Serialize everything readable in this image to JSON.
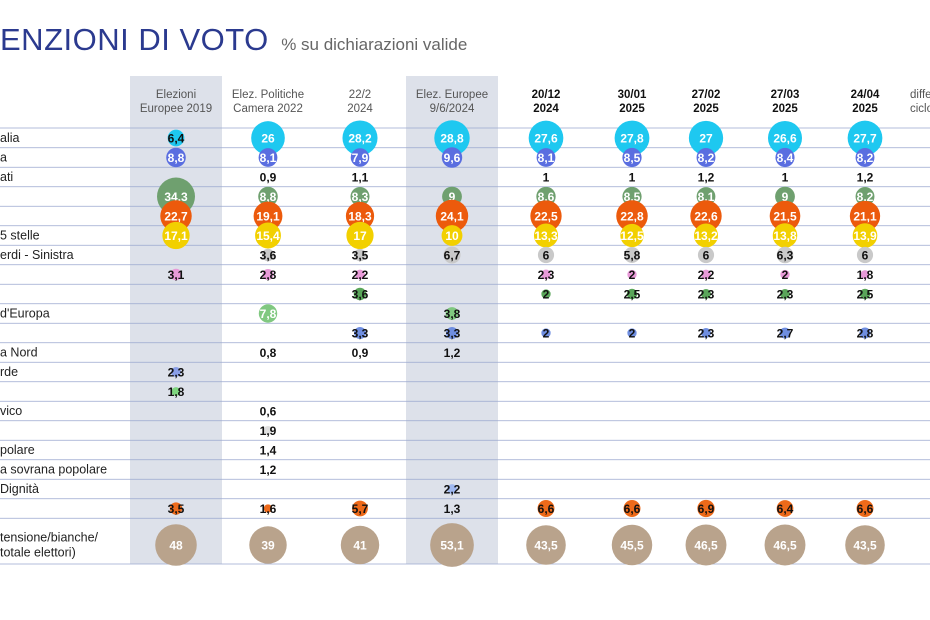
{
  "title": "ENZIONI DI VOTO",
  "subtitle": "% su dichiarazioni valide",
  "colors": {
    "title": "#2b3a8f",
    "highlight": "#dde1ea",
    "row_line": "#9aa8cf",
    "parties": [
      "#1ec8f0",
      "#5a6ee0",
      "#8fe28f",
      "#6fa06f",
      "#ec5a0c",
      "#f2d000",
      "#c9c9c9",
      "#e89ad8",
      "#5aa65a",
      "#80c880",
      "#6f8ee0",
      "#f2e23a",
      "#8a9fe8",
      "#7fd67f",
      "#f07a9a",
      "#e0e0e0",
      "#6fb0ff",
      "#f2d066",
      "#9fb8f0",
      "#ee6a1a",
      "#b9a38c",
      "#8f8f8f"
    ]
  },
  "chart_data": {
    "type": "table",
    "columns": [
      {
        "label": [
          "Elezioni",
          "Europee 2019"
        ],
        "bold": false,
        "highlight": true
      },
      {
        "label": [
          "Elez. Politiche",
          "Camera 2022"
        ],
        "bold": false,
        "highlight": false
      },
      {
        "label": [
          "22/2",
          "2024"
        ],
        "bold": false,
        "highlight": false
      },
      {
        "label": [
          "Elez. Europee",
          "9/6/2024"
        ],
        "bold": false,
        "highlight": true
      },
      {
        "label": [
          "20/12",
          "2024"
        ],
        "bold": true,
        "highlight": false
      },
      {
        "label": [
          "30/01",
          "2025"
        ],
        "bold": true,
        "highlight": false
      },
      {
        "label": [
          "27/02",
          "2025"
        ],
        "bold": true,
        "highlight": false
      },
      {
        "label": [
          "27/03",
          "2025"
        ],
        "bold": true,
        "highlight": false
      },
      {
        "label": [
          "24/04",
          "2025"
        ],
        "bold": true,
        "highlight": false
      },
      {
        "label": [
          "diffe",
          "ciclo"
        ],
        "bold": false,
        "highlight": false
      }
    ],
    "rows": [
      {
        "label": "alia",
        "values": [
          "6,4",
          "26",
          "28,2",
          "28,8",
          "27,6",
          "27,8",
          "27",
          "26,6",
          "27,7"
        ]
      },
      {
        "label": "a",
        "values": [
          "8,8",
          "8,1",
          "7,9",
          "9,6",
          "8,1",
          "8,5",
          "8,2",
          "8,4",
          "8,2"
        ]
      },
      {
        "label": "ati",
        "values": [
          "",
          "0,9",
          "1,1",
          "",
          "1",
          "1",
          "1,2",
          "1",
          "1,2"
        ]
      },
      {
        "label": "",
        "values": [
          "34,3",
          "8,8",
          "8,3",
          "9",
          "8,6",
          "8,5",
          "8,1",
          "9",
          "8,2"
        ]
      },
      {
        "label": "",
        "values": [
          "22,7",
          "19,1",
          "18,3",
          "24,1",
          "22,5",
          "22,8",
          "22,6",
          "21,5",
          "21,1"
        ]
      },
      {
        "label": " 5 stelle",
        "values": [
          "17,1",
          "15,4",
          "17",
          "10",
          "13,3",
          "12,5",
          "13,2",
          "13,8",
          "13,9"
        ]
      },
      {
        "label": "erdi - Sinistra",
        "values": [
          "",
          "3,6",
          "3,5",
          "6,7",
          "6",
          "5,8",
          "6",
          "6,3",
          "6"
        ]
      },
      {
        "label": "",
        "values": [
          "3,1",
          "2,8",
          "2,2",
          "",
          "2,3",
          "2",
          "2,2",
          "2",
          "1,8"
        ]
      },
      {
        "label": "",
        "values": [
          "",
          "",
          "3,6",
          "",
          "2",
          "2,5",
          "2,3",
          "2,3",
          "2,5"
        ]
      },
      {
        "label": "d'Europa",
        "values": [
          "",
          "7,8",
          "",
          "3,8",
          "",
          "",
          "",
          "",
          ""
        ]
      },
      {
        "label": "",
        "values": [
          "",
          "",
          "3,3",
          "3,3",
          "2",
          "2",
          "2,3",
          "2,7",
          "2,8"
        ]
      },
      {
        "label": "a Nord",
        "values": [
          "",
          "0,8",
          "0,9",
          "1,2",
          "",
          "",
          "",
          "",
          ""
        ]
      },
      {
        "label": "rde",
        "values": [
          "2,3",
          "",
          "",
          "",
          "",
          "",
          "",
          "",
          ""
        ]
      },
      {
        "label": "",
        "values": [
          "1,8",
          "",
          "",
          "",
          "",
          "",
          "",
          "",
          ""
        ]
      },
      {
        "label": "vico",
        "values": [
          "",
          "0,6",
          "",
          "",
          "",
          "",
          "",
          "",
          ""
        ]
      },
      {
        "label": "",
        "values": [
          "",
          "1,9",
          "",
          "",
          "",
          "",
          "",
          "",
          ""
        ]
      },
      {
        "label": "polare",
        "values": [
          "",
          "1,4",
          "",
          "",
          "",
          "",
          "",
          "",
          ""
        ]
      },
      {
        "label": "a sovrana popolare",
        "values": [
          "",
          "1,2",
          "",
          "",
          "",
          "",
          "",
          "",
          ""
        ]
      },
      {
        "label": " Dignità",
        "values": [
          "",
          "",
          "",
          "2,2",
          "",
          "",
          "",
          "",
          ""
        ]
      },
      {
        "label": "",
        "values": [
          "3,5",
          "1,6",
          "5,7",
          "1,3",
          "6,6",
          "6,6",
          "6,9",
          "6,4",
          "6,6"
        ]
      },
      {
        "label": "tensione/bianche/\n totale elettori)",
        "values": [
          "48",
          "39",
          "41",
          "53,1",
          "43,5",
          "45,5",
          "46,5",
          "46,5",
          "43,5"
        ]
      }
    ]
  }
}
